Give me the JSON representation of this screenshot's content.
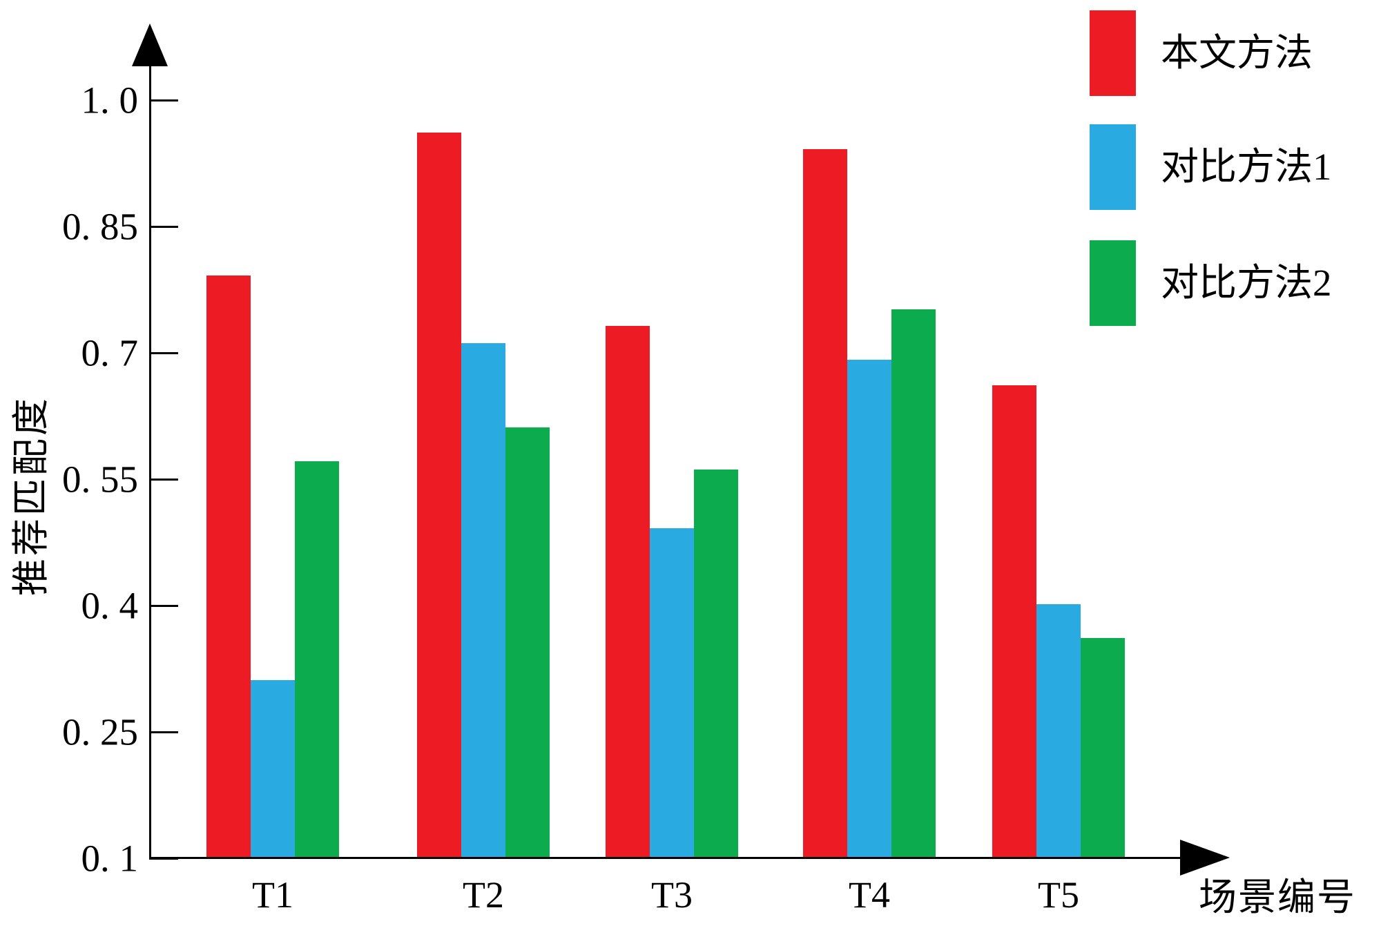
{
  "chart_data": {
    "type": "bar",
    "title": "",
    "categories": [
      "T1",
      "T2",
      "T3",
      "T4",
      "T5"
    ],
    "series": [
      {
        "name": "本文方法",
        "color": "#ED1C24",
        "values": [
          0.79,
          0.96,
          0.73,
          0.94,
          0.66
        ]
      },
      {
        "name": "对比方法1",
        "color": "#29ABE2",
        "values": [
          0.31,
          0.71,
          0.49,
          0.69,
          0.4
        ]
      },
      {
        "name": "对比方法2",
        "color": "#0BAB4E",
        "values": [
          0.57,
          0.61,
          0.56,
          0.75,
          0.36
        ]
      }
    ],
    "xlabel": "场景编号",
    "ylabel": "推荐匹配度",
    "ylim": [
      0.1,
      1.0
    ],
    "yticks": [
      1.0,
      0.85,
      0.7,
      0.55,
      0.4,
      0.25,
      0.1
    ],
    "ytick_labels": [
      "1. 0",
      "0. 85",
      "0. 7",
      "0. 55",
      "0. 4",
      "0. 25",
      "0. 1"
    ],
    "grid": false,
    "legend_position": "top-right",
    "axis_color": "#000000",
    "background_color": "#ffffff"
  }
}
